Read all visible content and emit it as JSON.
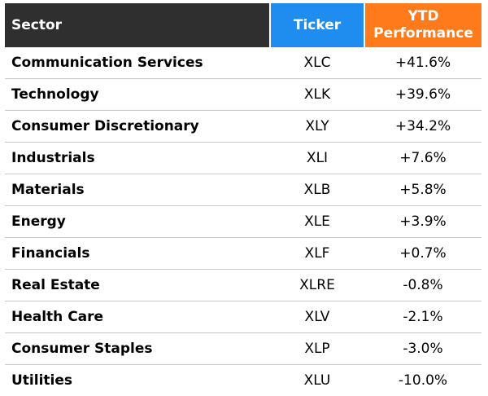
{
  "table": {
    "headers": {
      "sector": "Sector",
      "ticker": "Ticker",
      "perf_line1": "YTD",
      "perf_line2": "Performance"
    },
    "rows": [
      {
        "sector": "Communication Services",
        "ticker": "XLC",
        "perf": "+41.6%"
      },
      {
        "sector": "Technology",
        "ticker": "XLK",
        "perf": "+39.6%"
      },
      {
        "sector": "Consumer Discretionary",
        "ticker": "XLY",
        "perf": "+34.2%"
      },
      {
        "sector": "Industrials",
        "ticker": "XLI",
        "perf": "+7.6%"
      },
      {
        "sector": "Materials",
        "ticker": "XLB",
        "perf": "+5.8%"
      },
      {
        "sector": "Energy",
        "ticker": "XLE",
        "perf": "+3.9%"
      },
      {
        "sector": "Financials",
        "ticker": "XLF",
        "perf": "+0.7%"
      },
      {
        "sector": "Real Estate",
        "ticker": "XLRE",
        "perf": "-0.8%"
      },
      {
        "sector": "Health Care",
        "ticker": "XLV",
        "perf": "-2.1%"
      },
      {
        "sector": "Consumer Staples",
        "ticker": "XLP",
        "perf": "-3.0%"
      },
      {
        "sector": "Utilities",
        "ticker": "XLU",
        "perf": "-10.0%"
      }
    ]
  },
  "colors": {
    "header_sector_bg": "#2f2f2f",
    "header_ticker_bg": "#1f8cf0",
    "header_perf_bg": "#ff7a1a"
  }
}
